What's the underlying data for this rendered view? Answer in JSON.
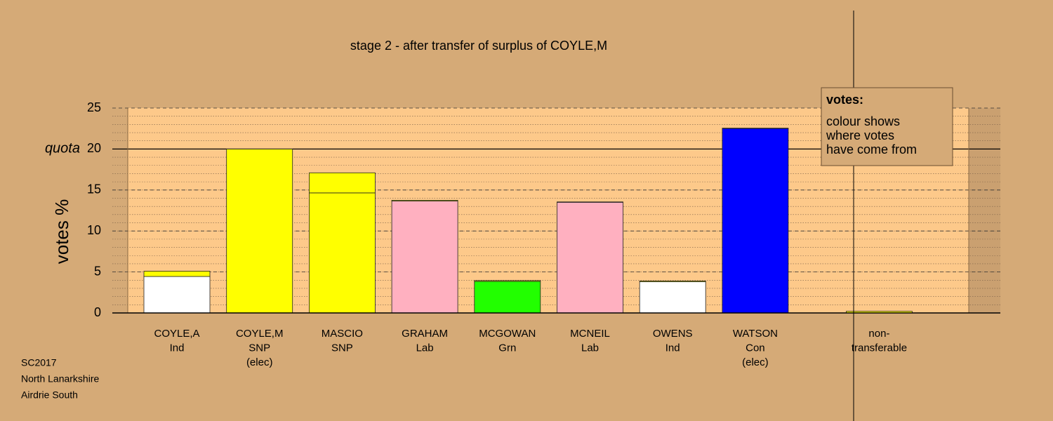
{
  "chart_data": {
    "type": "bar",
    "stacked": true,
    "title": "stage 2 - after transfer of surplus of COYLE,M",
    "ylabel": "votes %",
    "categories": [
      [
        "COYLE,A",
        "Ind"
      ],
      [
        "COYLE,M",
        "SNP",
        "(elec)"
      ],
      [
        "MASCIO",
        "SNP"
      ],
      [
        "GRAHAM",
        "Lab"
      ],
      [
        "MCGOWAN",
        "Grn"
      ],
      [
        "MCNEIL",
        "Lab"
      ],
      [
        "OWENS",
        "Ind"
      ],
      [
        "WATSON",
        "Con",
        "(elec)"
      ],
      [
        "non-",
        "transferable"
      ]
    ],
    "series": [
      {
        "colors": [
          "#ffffff",
          "#ffff00",
          "#ffff00",
          "#ffb0c0",
          "#22ff00",
          "#ffb0c0",
          "#ffffff",
          "#0000ff",
          "#ffff00"
        ],
        "values": [
          4.45,
          20,
          14.65,
          13.65,
          3.85,
          13.5,
          3.8,
          22.5,
          0
        ]
      },
      {
        "color": "#ffff00",
        "values": [
          0.65,
          0,
          2.45,
          0.1,
          0.1,
          0.05,
          0.1,
          0.05,
          0.2
        ]
      }
    ],
    "ylim": [
      0,
      25
    ],
    "yticks": [
      0,
      5,
      10,
      15,
      20,
      25
    ],
    "minor_grid_step": 1,
    "grid": true,
    "quota": 20,
    "quota_label": "quota",
    "legend": {
      "title": "votes:",
      "lines": [
        "colour shows",
        "where votes",
        "have come from"
      ]
    },
    "footer": [
      "SC2017",
      "North Lanarkshire",
      "Airdrie South"
    ]
  }
}
